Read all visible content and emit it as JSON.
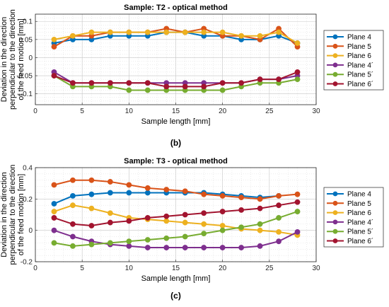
{
  "colors": {
    "plane4": "#0072BD",
    "plane5": "#D95319",
    "plane6": "#EDB120",
    "plane4b": "#7E2F8E",
    "plane5b": "#77AC30",
    "plane6b": "#A2142F",
    "grid": "#d9d9d9",
    "axis": "#262626"
  },
  "chart_data": [
    {
      "type": "line",
      "title": "Sample: T2 - optical method",
      "caption": "(b)",
      "xlabel": "Sample length [mm]",
      "ylabel_lines": [
        "Deviation in the direction",
        "perpendicular to the direction",
        "of the feed motion [mm]"
      ],
      "xlim": [
        0,
        30
      ],
      "ylim": [
        -0.13,
        0.12
      ],
      "xticks": [
        0,
        5,
        10,
        15,
        20,
        25,
        30
      ],
      "yticks": [
        -0.1,
        -0.05,
        0,
        0.05,
        0.1
      ],
      "ytick_labels": [
        "-0.1",
        "-0.05",
        "0",
        "0.05",
        "0.1"
      ],
      "grid": true,
      "legend_position": "outside-right",
      "x": [
        2,
        4,
        6,
        8,
        10,
        12,
        14,
        16,
        18,
        20,
        22,
        24,
        26,
        28
      ],
      "series": [
        {
          "name": "Plane 4",
          "color_key": "plane4",
          "values": [
            0.04,
            0.05,
            0.05,
            0.06,
            0.06,
            0.06,
            0.07,
            0.07,
            0.06,
            0.06,
            0.05,
            0.05,
            0.06,
            0.04
          ]
        },
        {
          "name": "Plane 5",
          "color_key": "plane5",
          "values": [
            0.03,
            0.06,
            0.06,
            0.07,
            0.07,
            0.07,
            0.08,
            0.07,
            0.08,
            0.06,
            0.06,
            0.05,
            0.08,
            0.03
          ]
        },
        {
          "name": "Plane 6",
          "color_key": "plane6",
          "values": [
            0.05,
            0.06,
            0.07,
            0.07,
            0.07,
            0.07,
            0.07,
            0.07,
            0.07,
            0.07,
            0.06,
            0.06,
            0.07,
            0.04
          ]
        },
        {
          "name": "Plane 4´",
          "color_key": "plane4b",
          "values": [
            -0.04,
            -0.07,
            -0.07,
            -0.07,
            -0.07,
            -0.07,
            -0.07,
            -0.07,
            -0.07,
            -0.07,
            -0.07,
            -0.06,
            -0.06,
            -0.05
          ]
        },
        {
          "name": "Plane 5´",
          "color_key": "plane5b",
          "values": [
            -0.05,
            -0.08,
            -0.08,
            -0.08,
            -0.09,
            -0.09,
            -0.09,
            -0.09,
            -0.09,
            -0.09,
            -0.08,
            -0.07,
            -0.07,
            -0.06
          ]
        },
        {
          "name": "Plane 6´",
          "color_key": "plane6b",
          "values": [
            -0.05,
            -0.07,
            -0.07,
            -0.07,
            -0.07,
            -0.07,
            -0.08,
            -0.08,
            -0.08,
            -0.07,
            -0.07,
            -0.06,
            -0.06,
            -0.04
          ]
        }
      ]
    },
    {
      "type": "line",
      "title": "Sample: T3 - optical method",
      "caption": "(c)",
      "xlabel": "Sample length [mm]",
      "ylabel_lines": [
        "Deviation in the direction",
        "perpendicular to the direction",
        "of the feed motion [mm]"
      ],
      "xlim": [
        0,
        30
      ],
      "ylim": [
        -0.2,
        0.4
      ],
      "xticks": [
        0,
        5,
        10,
        15,
        20,
        25,
        30
      ],
      "yticks": [
        -0.2,
        0,
        0.2,
        0.4
      ],
      "ytick_labels": [
        "-0.2",
        "0",
        "0.2",
        "0.4"
      ],
      "grid": true,
      "legend_position": "outside-right",
      "x": [
        2,
        4,
        6,
        8,
        10,
        12,
        14,
        16,
        18,
        20,
        22,
        24,
        26,
        28
      ],
      "series": [
        {
          "name": "Plane 4",
          "color_key": "plane4",
          "values": [
            0.17,
            0.22,
            0.23,
            0.24,
            0.24,
            0.24,
            0.24,
            0.24,
            0.24,
            0.23,
            0.22,
            0.21,
            0.22,
            null
          ]
        },
        {
          "name": "Plane 5",
          "color_key": "plane5",
          "values": [
            0.29,
            0.32,
            0.32,
            0.31,
            0.29,
            0.27,
            0.26,
            0.25,
            0.23,
            0.22,
            0.21,
            0.2,
            0.22,
            0.23
          ]
        },
        {
          "name": "Plane 6",
          "color_key": "plane6",
          "values": [
            0.12,
            0.16,
            0.14,
            0.11,
            0.08,
            0.07,
            0.06,
            0.05,
            0.04,
            0.03,
            0.01,
            0.0,
            -0.01,
            -0.03
          ]
        },
        {
          "name": "Plane 4´",
          "color_key": "plane4b",
          "values": [
            0.0,
            -0.04,
            -0.07,
            -0.09,
            -0.1,
            -0.11,
            -0.11,
            -0.11,
            -0.11,
            -0.11,
            -0.11,
            -0.1,
            -0.07,
            -0.01
          ]
        },
        {
          "name": "Plane 5´",
          "color_key": "plane5b",
          "values": [
            -0.08,
            -0.1,
            -0.09,
            -0.08,
            -0.07,
            -0.06,
            -0.05,
            -0.04,
            -0.02,
            0.0,
            0.02,
            0.04,
            0.08,
            0.12
          ]
        },
        {
          "name": "Plane 6´",
          "color_key": "plane6b",
          "values": [
            0.08,
            0.04,
            0.03,
            0.05,
            0.06,
            0.08,
            0.09,
            0.1,
            0.11,
            0.12,
            0.13,
            0.14,
            0.16,
            0.18
          ]
        }
      ]
    }
  ]
}
